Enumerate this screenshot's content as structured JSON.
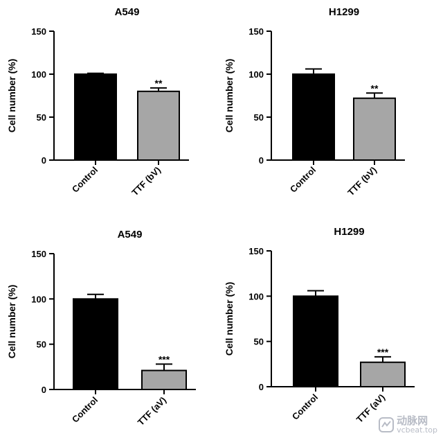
{
  "chart_data": [
    {
      "type": "bar",
      "title": "A549",
      "ylabel": "Cell number (%)",
      "ylim": [
        0,
        150
      ],
      "yticks": [
        0,
        50,
        100,
        150
      ],
      "categories": [
        "Control",
        "TTF (bV)"
      ],
      "values": [
        100,
        80
      ],
      "errors": [
        1,
        4
      ],
      "significance": [
        "",
        "**"
      ],
      "bar_colors": [
        "#000000",
        "#a6a6a6"
      ]
    },
    {
      "type": "bar",
      "title": "H1299",
      "ylabel": "Cell number (%)",
      "ylim": [
        0,
        150
      ],
      "yticks": [
        0,
        50,
        100,
        150
      ],
      "categories": [
        "Control",
        "TTF (bV)"
      ],
      "values": [
        100,
        72
      ],
      "errors": [
        6,
        6
      ],
      "significance": [
        "",
        "**"
      ],
      "bar_colors": [
        "#000000",
        "#a6a6a6"
      ]
    },
    {
      "type": "bar",
      "title": "A549",
      "ylabel": "Cell number (%)",
      "ylim": [
        0,
        150
      ],
      "yticks": [
        0,
        50,
        100,
        150
      ],
      "categories": [
        "Control",
        "TTF (aV)"
      ],
      "values": [
        100,
        21
      ],
      "errors": [
        5,
        7
      ],
      "significance": [
        "",
        "***"
      ],
      "bar_colors": [
        "#000000",
        "#a6a6a6"
      ]
    },
    {
      "type": "bar",
      "title": "H1299",
      "ylabel": "Cell number (%)",
      "ylim": [
        0,
        150
      ],
      "yticks": [
        0,
        50,
        100,
        150
      ],
      "categories": [
        "Control",
        "TTF (aV)"
      ],
      "values": [
        100,
        27
      ],
      "errors": [
        6,
        6
      ],
      "significance": [
        "",
        "***"
      ],
      "bar_colors": [
        "#000000",
        "#a6a6a6"
      ]
    }
  ],
  "watermark": {
    "name": "动脉网",
    "url": "vcbeat.top"
  }
}
